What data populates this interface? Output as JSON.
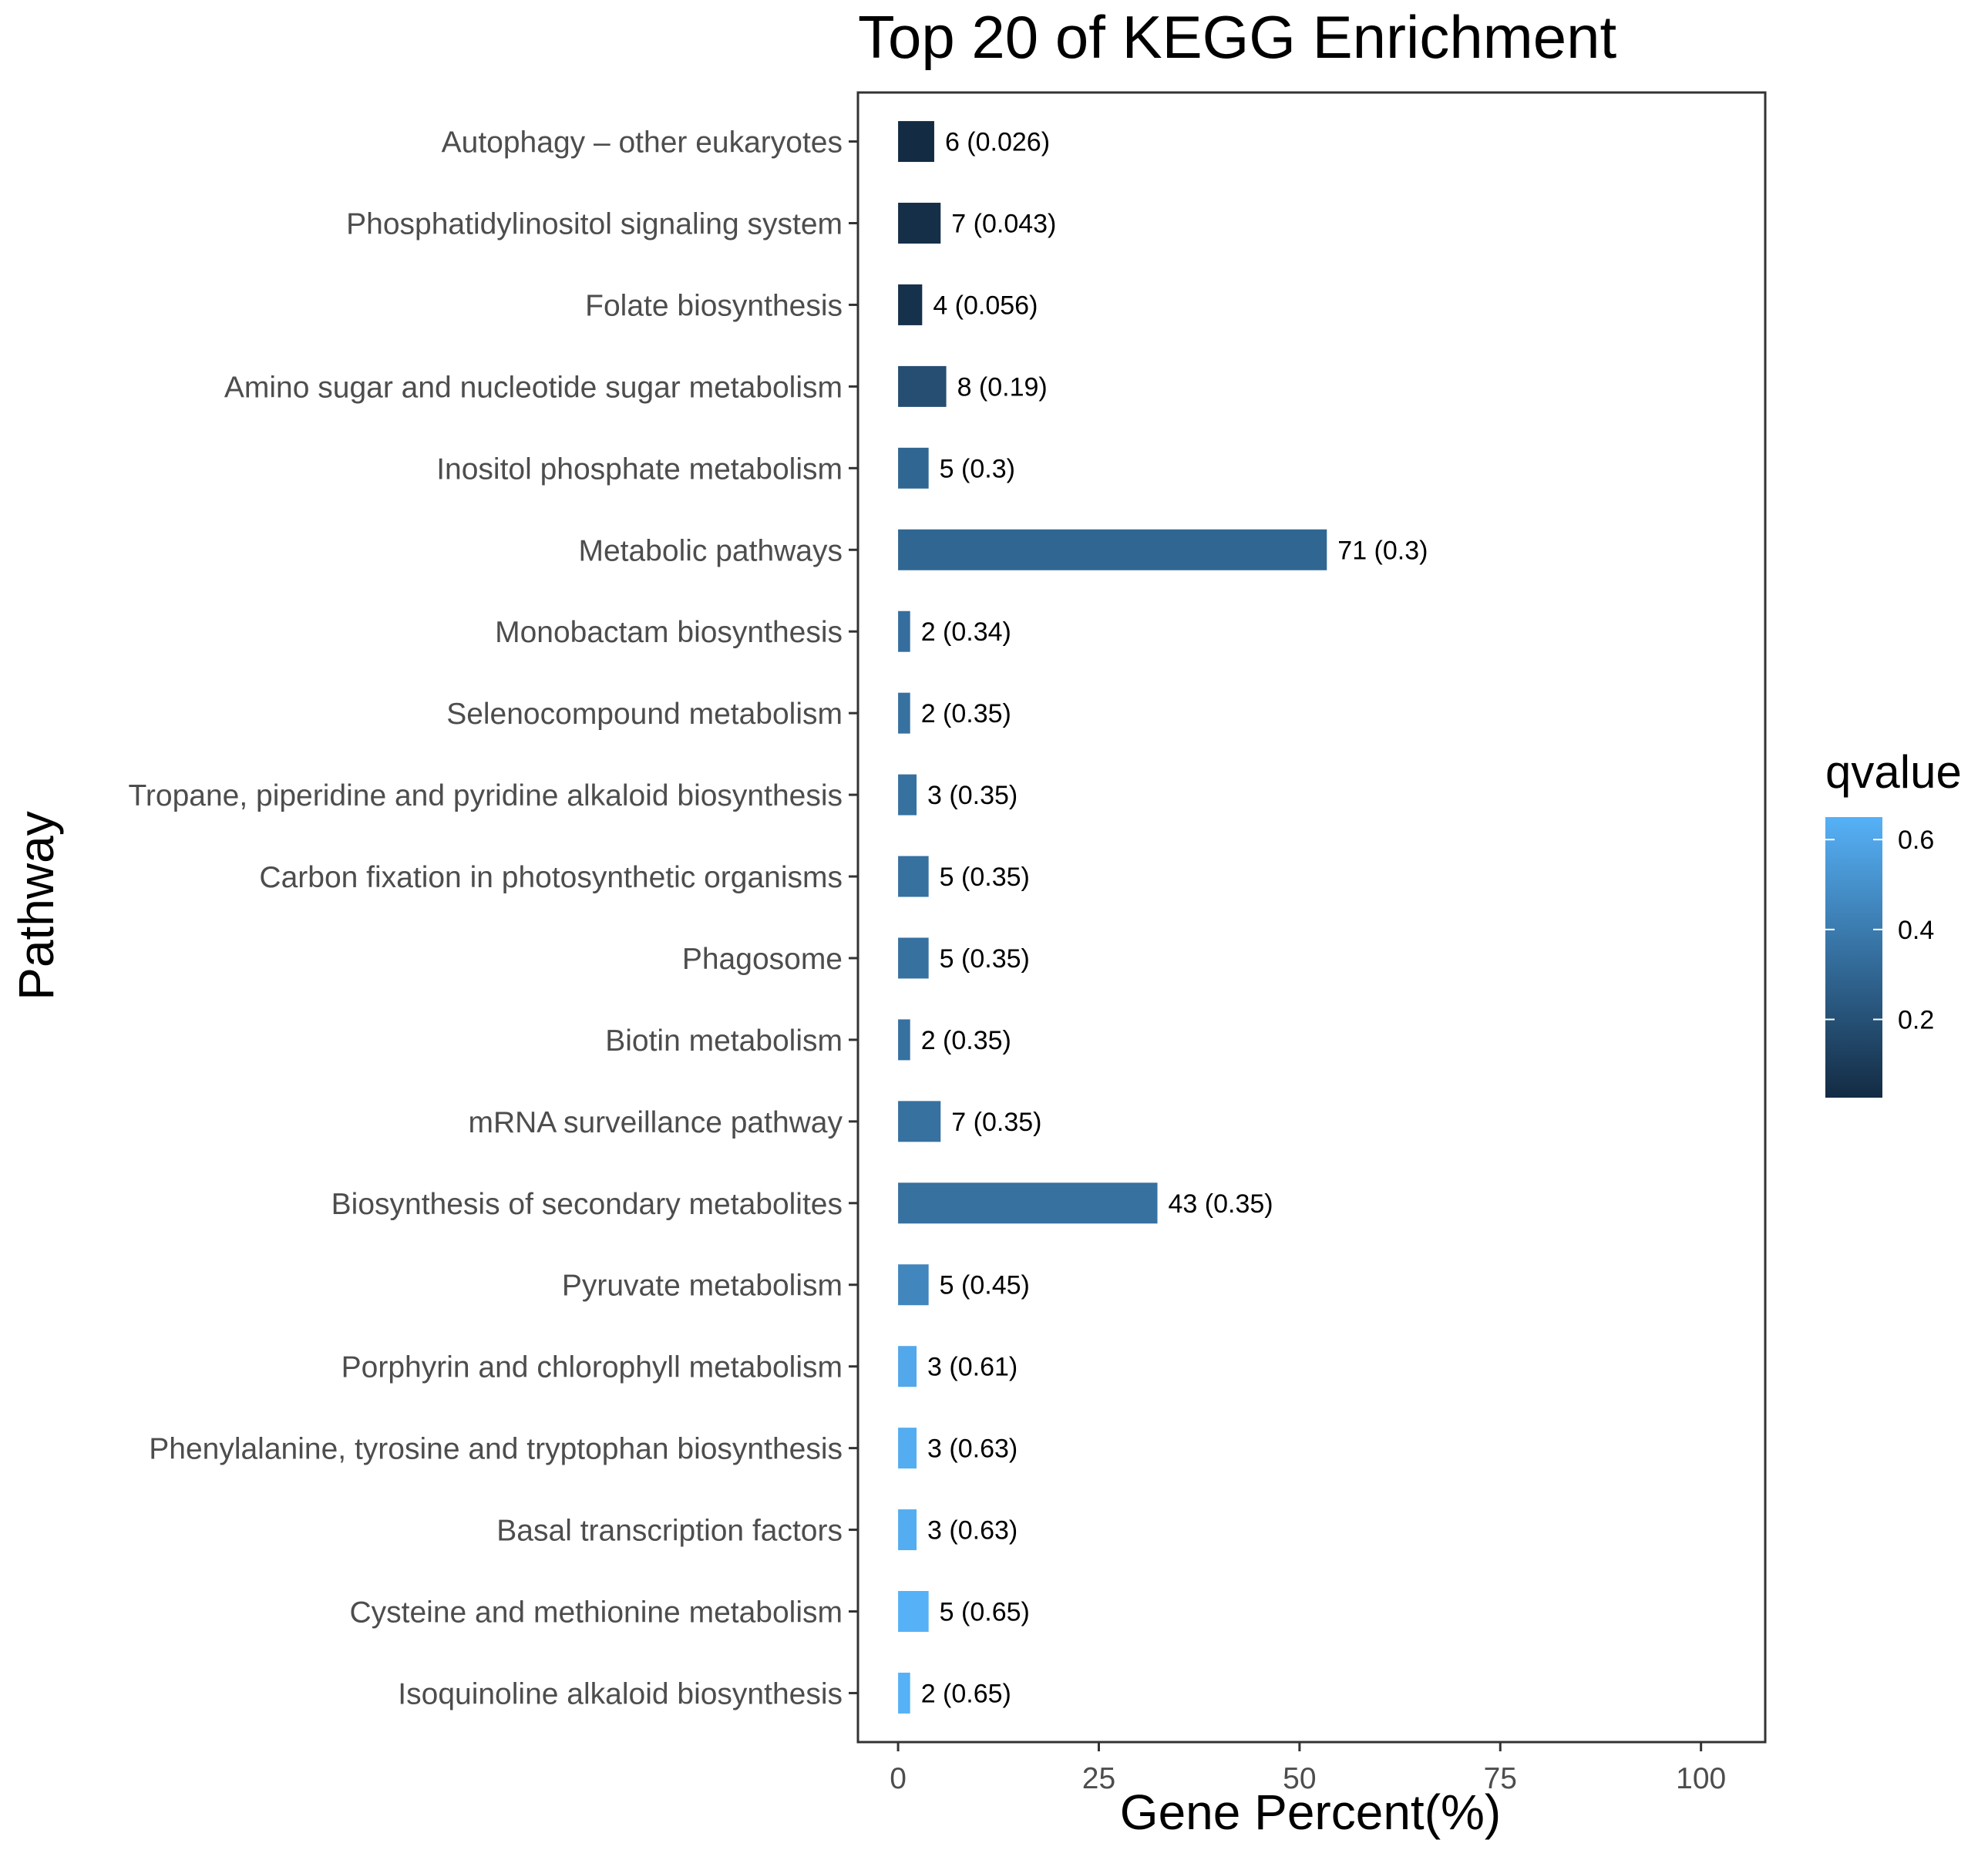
{
  "chart_data": {
    "type": "bar",
    "orientation": "horizontal",
    "title": "Top 20 of KEGG Enrichment",
    "xlabel": "Gene Percent(%)",
    "ylabel": "Pathway",
    "xlim": [
      -5,
      108
    ],
    "xticks": [
      0,
      25,
      50,
      75,
      100
    ],
    "grid": false,
    "legend": {
      "title": "qvalue",
      "position": "right",
      "range": [
        0.026,
        0.65
      ],
      "ticks": [
        "0.2",
        "0.4",
        "0.6"
      ],
      "tick_values": [
        0.2,
        0.4,
        0.6
      ],
      "color_low": "#132B43",
      "color_high": "#56B1F7"
    },
    "bars": [
      {
        "pathway": "Autophagy – other eukaryotes",
        "percent": 4.5,
        "count": 6,
        "qvalue": 0.026,
        "label": "6 (0.026)"
      },
      {
        "pathway": "Phosphatidylinositol signaling system",
        "percent": 5.3,
        "count": 7,
        "qvalue": 0.043,
        "label": "7 (0.043)"
      },
      {
        "pathway": "Folate biosynthesis",
        "percent": 3.0,
        "count": 4,
        "qvalue": 0.056,
        "label": "4 (0.056)"
      },
      {
        "pathway": "Amino sugar and nucleotide sugar metabolism",
        "percent": 6.0,
        "count": 8,
        "qvalue": 0.19,
        "label": "8 (0.19)"
      },
      {
        "pathway": "Inositol phosphate metabolism",
        "percent": 3.8,
        "count": 5,
        "qvalue": 0.3,
        "label": "5 (0.3)"
      },
      {
        "pathway": "Metabolic pathways",
        "percent": 53.4,
        "count": 71,
        "qvalue": 0.3,
        "label": "71 (0.3)"
      },
      {
        "pathway": "Monobactam biosynthesis",
        "percent": 1.5,
        "count": 2,
        "qvalue": 0.34,
        "label": "2 (0.34)"
      },
      {
        "pathway": "Selenocompound metabolism",
        "percent": 1.5,
        "count": 2,
        "qvalue": 0.35,
        "label": "2 (0.35)"
      },
      {
        "pathway": "Tropane, piperidine and pyridine alkaloid biosynthesis",
        "percent": 2.3,
        "count": 3,
        "qvalue": 0.35,
        "label": "3 (0.35)"
      },
      {
        "pathway": "Carbon fixation in photosynthetic organisms",
        "percent": 3.8,
        "count": 5,
        "qvalue": 0.35,
        "label": "5 (0.35)"
      },
      {
        "pathway": "Phagosome",
        "percent": 3.8,
        "count": 5,
        "qvalue": 0.35,
        "label": "5 (0.35)"
      },
      {
        "pathway": "Biotin metabolism",
        "percent": 1.5,
        "count": 2,
        "qvalue": 0.35,
        "label": "2 (0.35)"
      },
      {
        "pathway": "mRNA surveillance pathway",
        "percent": 5.3,
        "count": 7,
        "qvalue": 0.35,
        "label": "7 (0.35)"
      },
      {
        "pathway": "Biosynthesis of secondary metabolites",
        "percent": 32.3,
        "count": 43,
        "qvalue": 0.35,
        "label": "43 (0.35)"
      },
      {
        "pathway": "Pyruvate metabolism",
        "percent": 3.8,
        "count": 5,
        "qvalue": 0.45,
        "label": "5 (0.45)"
      },
      {
        "pathway": "Porphyrin and chlorophyll metabolism",
        "percent": 2.3,
        "count": 3,
        "qvalue": 0.61,
        "label": "3 (0.61)"
      },
      {
        "pathway": "Phenylalanine, tyrosine and tryptophan biosynthesis",
        "percent": 2.3,
        "count": 3,
        "qvalue": 0.63,
        "label": "3 (0.63)"
      },
      {
        "pathway": "Basal transcription factors",
        "percent": 2.3,
        "count": 3,
        "qvalue": 0.63,
        "label": "3 (0.63)"
      },
      {
        "pathway": "Cysteine and methionine metabolism",
        "percent": 3.8,
        "count": 5,
        "qvalue": 0.65,
        "label": "5 (0.65)"
      },
      {
        "pathway": "Isoquinoline alkaloid biosynthesis",
        "percent": 1.5,
        "count": 2,
        "qvalue": 0.65,
        "label": "2 (0.65)"
      }
    ]
  }
}
